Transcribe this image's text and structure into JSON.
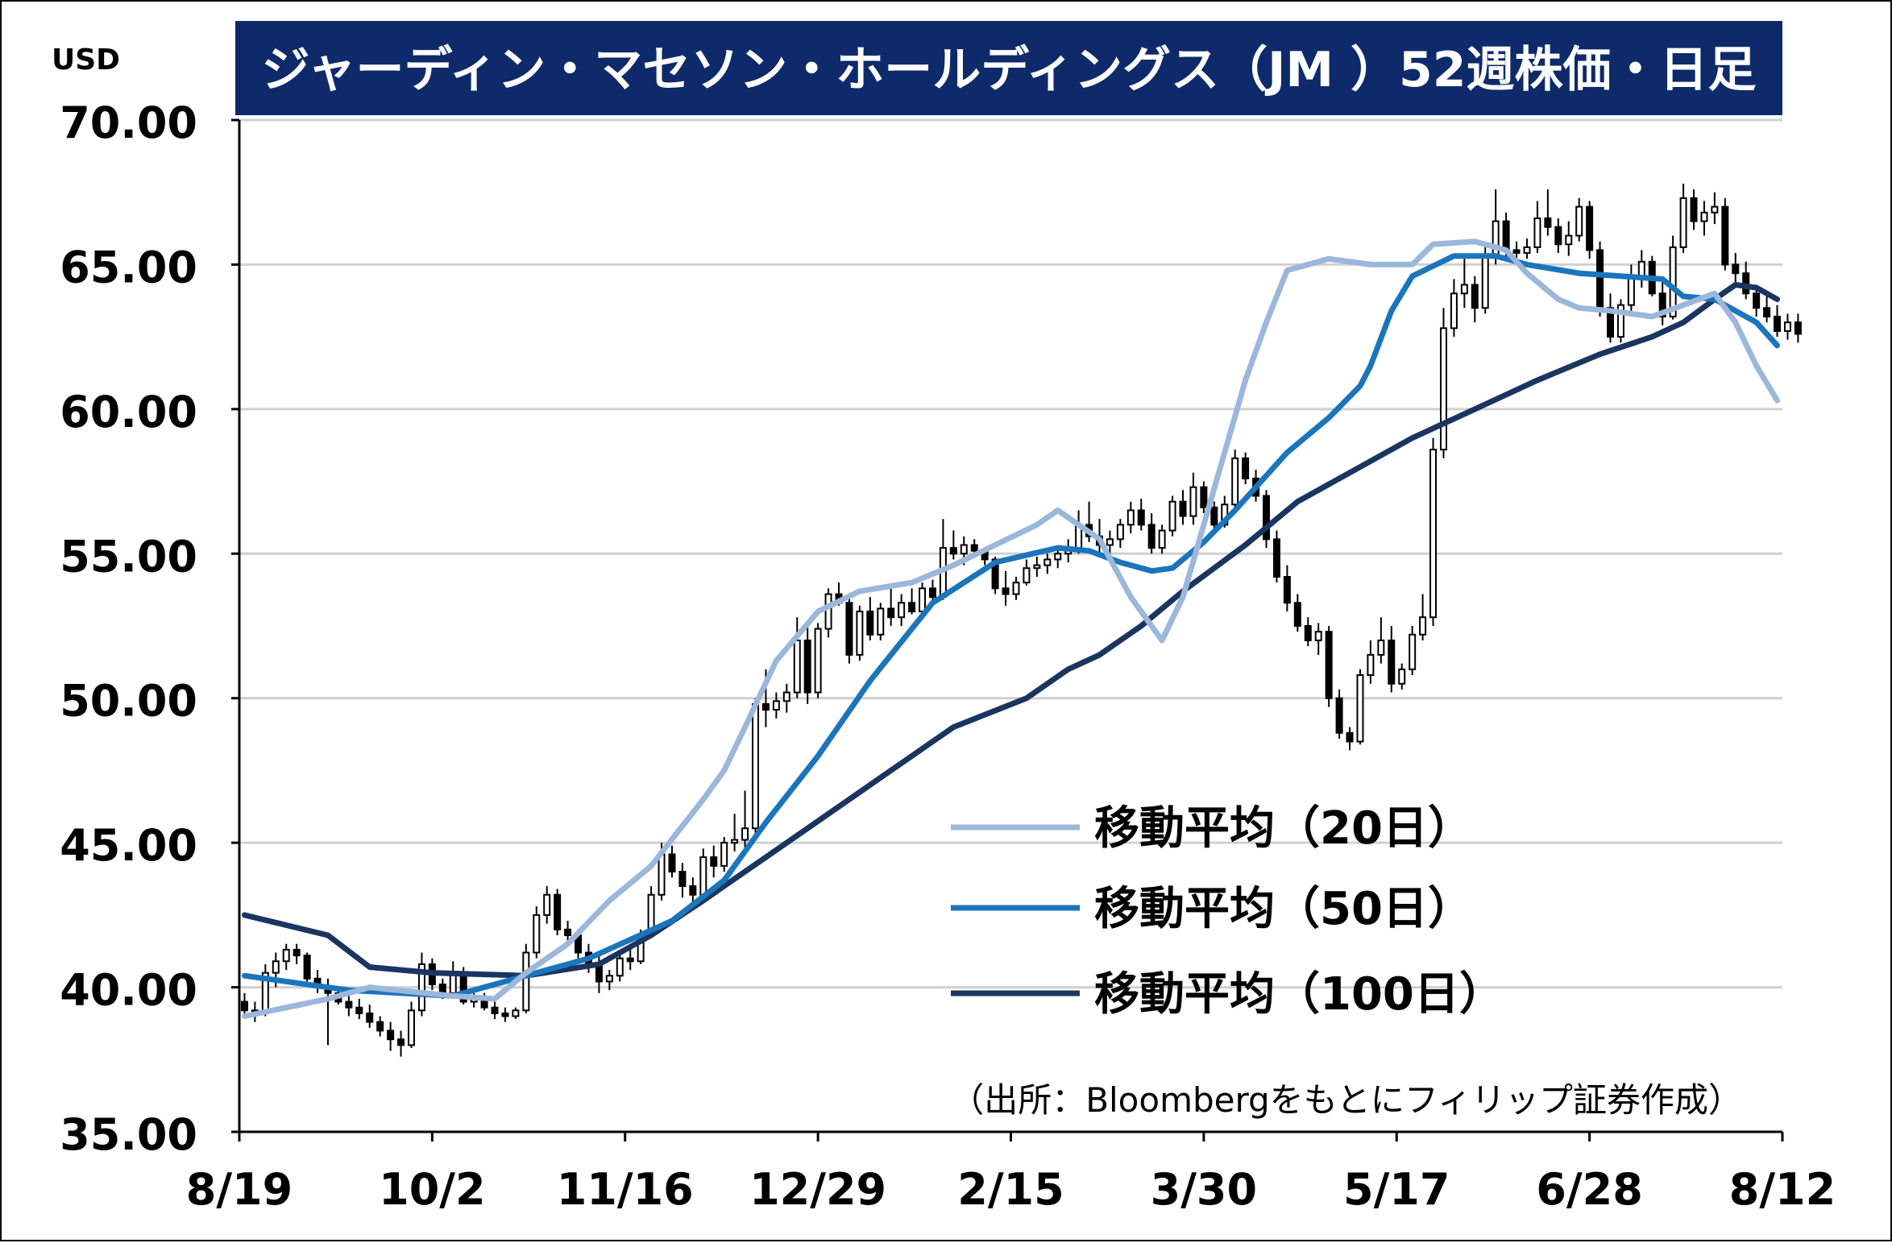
{
  "chart_data": {
    "type": "candlestick",
    "title": "ジャーディン・マセソン・ホールディングス（JM ）52週株価・日足",
    "y_unit": "USD",
    "source": "（出所：Bloombergをもとにフィリップ証券作成）",
    "ylim": [
      35,
      70
    ],
    "y_ticks": [
      "70.00",
      "65.00",
      "60.00",
      "55.00",
      "50.00",
      "45.00",
      "40.00",
      "35.00"
    ],
    "x_ticks": [
      "8/19",
      "10/2",
      "11/16",
      "12/29",
      "2/15",
      "3/30",
      "5/17",
      "6/28",
      "8/12"
    ],
    "grid": true,
    "legend_position": "right-center",
    "colors": {
      "title_bg": "#0f2a6a",
      "title_fg": "#ffffff",
      "ma20": "#9bb7db",
      "ma50": "#1b75bc",
      "ma100": "#1a3560",
      "candle": "#000000",
      "grid": "#d0d0d0"
    },
    "series": [
      {
        "name": "移動平均（20日）",
        "key": "ma20",
        "points": [
          [
            0,
            39.0
          ],
          [
            8,
            39.6
          ],
          [
            12,
            40.0
          ],
          [
            20,
            39.7
          ],
          [
            24,
            39.6
          ],
          [
            27,
            40.5
          ],
          [
            31,
            41.5
          ],
          [
            35,
            43.0
          ],
          [
            39,
            44.2
          ],
          [
            44,
            46.5
          ],
          [
            46,
            47.5
          ],
          [
            48,
            49.0
          ],
          [
            51,
            51.3
          ],
          [
            55,
            53.0
          ],
          [
            59,
            53.7
          ],
          [
            64,
            54.0
          ],
          [
            68,
            54.6
          ],
          [
            72,
            55.3
          ],
          [
            76,
            56.0
          ],
          [
            78,
            56.5
          ],
          [
            82,
            55.5
          ],
          [
            85,
            53.5
          ],
          [
            88,
            52.0
          ],
          [
            90,
            53.5
          ],
          [
            92,
            56.0
          ],
          [
            94,
            58.5
          ],
          [
            96,
            61.0
          ],
          [
            98,
            63.0
          ],
          [
            100,
            64.8
          ],
          [
            104,
            65.2
          ],
          [
            108,
            65.0
          ],
          [
            112,
            65.0
          ],
          [
            114,
            65.7
          ],
          [
            118,
            65.8
          ],
          [
            121,
            65.5
          ],
          [
            123,
            64.7
          ],
          [
            126,
            63.8
          ],
          [
            128,
            63.5
          ],
          [
            131,
            63.4
          ],
          [
            135,
            63.2
          ],
          [
            138,
            63.6
          ],
          [
            141,
            64.0
          ],
          [
            143,
            63.0
          ],
          [
            145,
            61.5
          ],
          [
            147,
            60.3
          ]
        ]
      },
      {
        "name": "移動平均（50日）",
        "key": "ma50",
        "points": [
          [
            0,
            40.4
          ],
          [
            10,
            39.9
          ],
          [
            20,
            39.7
          ],
          [
            25,
            40.2
          ],
          [
            33,
            41.0
          ],
          [
            41,
            42.3
          ],
          [
            46,
            43.7
          ],
          [
            50,
            45.7
          ],
          [
            55,
            48.0
          ],
          [
            60,
            50.6
          ],
          [
            66,
            53.3
          ],
          [
            72,
            54.7
          ],
          [
            78,
            55.2
          ],
          [
            81,
            55.1
          ],
          [
            84,
            54.7
          ],
          [
            87,
            54.4
          ],
          [
            89,
            54.5
          ],
          [
            92,
            55.4
          ],
          [
            95,
            56.5
          ],
          [
            100,
            58.5
          ],
          [
            104,
            59.7
          ],
          [
            107,
            60.8
          ],
          [
            108,
            61.5
          ],
          [
            110,
            63.4
          ],
          [
            112,
            64.6
          ],
          [
            116,
            65.3
          ],
          [
            120,
            65.3
          ],
          [
            123,
            65.0
          ],
          [
            128,
            64.7
          ],
          [
            132,
            64.6
          ],
          [
            136,
            64.5
          ],
          [
            138,
            63.9
          ],
          [
            141,
            63.8
          ],
          [
            145,
            63.0
          ],
          [
            147,
            62.2
          ]
        ]
      },
      {
        "name": "移動平均（100日）",
        "key": "ma100",
        "points": [
          [
            0,
            42.5
          ],
          [
            8,
            41.8
          ],
          [
            12,
            40.7
          ],
          [
            18,
            40.5
          ],
          [
            27,
            40.4
          ],
          [
            34,
            40.8
          ],
          [
            39,
            41.8
          ],
          [
            44,
            43.0
          ],
          [
            50,
            44.5
          ],
          [
            56,
            46.0
          ],
          [
            62,
            47.5
          ],
          [
            68,
            49.0
          ],
          [
            75,
            50.0
          ],
          [
            79,
            51.0
          ],
          [
            82,
            51.5
          ],
          [
            86,
            52.5
          ],
          [
            90,
            53.7
          ],
          [
            96,
            55.3
          ],
          [
            101,
            56.8
          ],
          [
            106,
            57.8
          ],
          [
            112,
            59.0
          ],
          [
            118,
            60.0
          ],
          [
            124,
            61.0
          ],
          [
            130,
            61.9
          ],
          [
            135,
            62.5
          ],
          [
            138,
            63.0
          ],
          [
            141,
            63.8
          ],
          [
            143,
            64.3
          ],
          [
            145,
            64.2
          ],
          [
            147,
            63.8
          ]
        ]
      }
    ],
    "candles_ohlc": [
      [
        39.5,
        39.8,
        39.0,
        39.2
      ],
      [
        39.2,
        39.5,
        38.8,
        39.1
      ],
      [
        39.1,
        40.8,
        39.0,
        40.5
      ],
      [
        40.5,
        41.2,
        40.0,
        40.9
      ],
      [
        40.9,
        41.5,
        40.6,
        41.3
      ],
      [
        41.3,
        41.5,
        40.8,
        41.1
      ],
      [
        41.1,
        41.2,
        40.2,
        40.3
      ],
      [
        40.3,
        40.6,
        39.8,
        40.0
      ],
      [
        40.0,
        40.3,
        38.0,
        39.8
      ],
      [
        39.8,
        40.0,
        39.4,
        39.5
      ],
      [
        39.5,
        39.7,
        39.0,
        39.3
      ],
      [
        39.3,
        39.6,
        38.9,
        39.1
      ],
      [
        39.1,
        39.4,
        38.6,
        38.8
      ],
      [
        38.8,
        39.0,
        38.3,
        38.5
      ],
      [
        38.5,
        38.8,
        37.8,
        38.2
      ],
      [
        38.2,
        38.5,
        37.6,
        38.0
      ],
      [
        38.0,
        39.5,
        37.9,
        39.2
      ],
      [
        39.2,
        41.2,
        39.0,
        40.8
      ],
      [
        40.8,
        41.0,
        39.9,
        40.1
      ],
      [
        40.1,
        40.3,
        39.6,
        39.8
      ],
      [
        39.8,
        40.9,
        39.7,
        40.5
      ],
      [
        40.5,
        40.7,
        39.4,
        39.5
      ],
      [
        39.5,
        39.8,
        39.3,
        39.6
      ],
      [
        39.6,
        39.8,
        39.2,
        39.3
      ],
      [
        39.3,
        39.5,
        38.9,
        39.1
      ],
      [
        39.1,
        39.3,
        38.8,
        39.0
      ],
      [
        39.0,
        39.3,
        38.9,
        39.2
      ],
      [
        39.2,
        41.5,
        39.1,
        41.2
      ],
      [
        41.2,
        42.8,
        41.0,
        42.5
      ],
      [
        42.5,
        43.5,
        42.2,
        43.2
      ],
      [
        43.2,
        43.4,
        41.8,
        42.0
      ],
      [
        42.0,
        42.3,
        41.5,
        41.8
      ],
      [
        41.8,
        42.0,
        41.0,
        41.2
      ],
      [
        41.2,
        41.5,
        40.5,
        40.8
      ],
      [
        40.8,
        41.2,
        39.8,
        40.2
      ],
      [
        40.2,
        40.6,
        39.9,
        40.4
      ],
      [
        40.4,
        41.2,
        40.2,
        41.0
      ],
      [
        41.0,
        41.5,
        40.6,
        40.9
      ],
      [
        40.9,
        42.0,
        40.8,
        41.8
      ],
      [
        41.8,
        43.5,
        41.7,
        43.2
      ],
      [
        43.2,
        45.0,
        43.0,
        44.6
      ],
      [
        44.6,
        44.9,
        43.8,
        44.0
      ],
      [
        44.0,
        44.3,
        43.1,
        43.5
      ],
      [
        43.5,
        43.8,
        42.9,
        43.2
      ],
      [
        43.2,
        44.8,
        43.0,
        44.5
      ],
      [
        44.5,
        44.9,
        43.8,
        44.2
      ],
      [
        44.2,
        45.2,
        44.0,
        45.0
      ],
      [
        45.0,
        46.0,
        44.7,
        45.1
      ],
      [
        45.1,
        46.8,
        44.8,
        45.5
      ],
      [
        45.5,
        50.0,
        45.3,
        49.8
      ],
      [
        49.8,
        51.0,
        49.0,
        49.6
      ],
      [
        49.6,
        50.2,
        49.3,
        49.9
      ],
      [
        49.9,
        50.5,
        49.5,
        50.2
      ],
      [
        50.2,
        52.8,
        50.0,
        52.0
      ],
      [
        52.0,
        52.5,
        49.8,
        50.2
      ],
      [
        50.2,
        52.6,
        50.0,
        52.4
      ],
      [
        52.4,
        53.8,
        52.1,
        53.6
      ],
      [
        53.6,
        54.0,
        53.2,
        53.3
      ],
      [
        53.3,
        53.5,
        51.2,
        51.5
      ],
      [
        51.5,
        53.2,
        51.3,
        53.0
      ],
      [
        53.0,
        53.5,
        52.0,
        52.2
      ],
      [
        52.2,
        53.3,
        52.0,
        53.1
      ],
      [
        53.1,
        53.8,
        52.5,
        52.8
      ],
      [
        52.8,
        53.6,
        52.5,
        53.3
      ],
      [
        53.3,
        53.8,
        52.9,
        53.0
      ],
      [
        53.0,
        54.0,
        52.8,
        53.8
      ],
      [
        53.8,
        54.1,
        53.2,
        53.5
      ],
      [
        53.5,
        56.2,
        53.4,
        55.2
      ],
      [
        55.2,
        55.8,
        54.8,
        55.0
      ],
      [
        55.0,
        55.6,
        54.6,
        55.3
      ],
      [
        55.3,
        55.5,
        54.9,
        55.1
      ],
      [
        55.1,
        55.2,
        54.6,
        54.8
      ],
      [
        54.8,
        54.9,
        53.6,
        53.8
      ],
      [
        53.8,
        54.4,
        53.2,
        53.6
      ],
      [
        53.6,
        54.2,
        53.4,
        54.0
      ],
      [
        54.0,
        54.8,
        53.9,
        54.5
      ],
      [
        54.5,
        54.9,
        54.2,
        54.6
      ],
      [
        54.6,
        55.0,
        54.3,
        54.8
      ],
      [
        54.8,
        55.2,
        54.5,
        55.0
      ],
      [
        55.0,
        55.5,
        54.7,
        55.2
      ],
      [
        55.2,
        56.5,
        55.0,
        56.0
      ],
      [
        56.0,
        56.8,
        55.4,
        55.6
      ],
      [
        55.6,
        56.2,
        55.0,
        55.3
      ],
      [
        55.3,
        55.8,
        54.9,
        55.5
      ],
      [
        55.5,
        56.2,
        55.2,
        56.0
      ],
      [
        56.0,
        56.8,
        55.7,
        56.5
      ],
      [
        56.5,
        56.9,
        55.8,
        56.0
      ],
      [
        56.0,
        56.4,
        55.0,
        55.2
      ],
      [
        55.2,
        56.0,
        55.0,
        55.8
      ],
      [
        55.8,
        57.0,
        55.6,
        56.8
      ],
      [
        56.8,
        57.2,
        56.0,
        56.3
      ],
      [
        56.3,
        57.8,
        56.0,
        57.3
      ],
      [
        57.3,
        57.5,
        56.4,
        56.6
      ],
      [
        56.6,
        56.8,
        55.8,
        56.0
      ],
      [
        56.0,
        57.0,
        55.9,
        56.7
      ],
      [
        56.7,
        58.6,
        56.5,
        58.3
      ],
      [
        58.3,
        58.5,
        57.4,
        57.6
      ],
      [
        57.6,
        57.9,
        56.8,
        57.0
      ],
      [
        57.0,
        57.2,
        55.2,
        55.5
      ],
      [
        55.5,
        55.8,
        54.0,
        54.2
      ],
      [
        54.2,
        54.6,
        53.0,
        53.3
      ],
      [
        53.3,
        53.6,
        52.3,
        52.5
      ],
      [
        52.5,
        52.8,
        51.8,
        52.0
      ],
      [
        52.0,
        52.6,
        51.5,
        52.3
      ],
      [
        52.3,
        52.5,
        49.7,
        50.0
      ],
      [
        50.0,
        50.3,
        48.6,
        48.8
      ],
      [
        48.8,
        49.0,
        48.2,
        48.5
      ],
      [
        48.5,
        51.0,
        48.4,
        50.8
      ],
      [
        50.8,
        52.0,
        50.5,
        51.5
      ],
      [
        51.5,
        52.8,
        51.2,
        52.0
      ],
      [
        52.0,
        52.5,
        50.2,
        50.5
      ],
      [
        50.5,
        51.2,
        50.3,
        51.0
      ],
      [
        51.0,
        52.5,
        50.8,
        52.2
      ],
      [
        52.2,
        53.6,
        52.0,
        52.8
      ],
      [
        52.8,
        59.0,
        52.5,
        58.6
      ],
      [
        58.6,
        63.5,
        58.3,
        62.8
      ],
      [
        62.8,
        64.5,
        62.5,
        64.0
      ],
      [
        64.0,
        65.2,
        63.5,
        64.3
      ],
      [
        64.3,
        64.6,
        63.0,
        63.5
      ],
      [
        63.5,
        65.8,
        63.3,
        65.3
      ],
      [
        65.3,
        67.6,
        65.0,
        66.5
      ],
      [
        66.5,
        66.8,
        65.2,
        65.5
      ],
      [
        65.5,
        65.8,
        65.1,
        65.4
      ],
      [
        65.4,
        65.9,
        65.2,
        65.6
      ],
      [
        65.6,
        67.2,
        65.4,
        66.6
      ],
      [
        66.6,
        67.6,
        66.0,
        66.3
      ],
      [
        66.3,
        66.6,
        65.4,
        65.7
      ],
      [
        65.7,
        66.5,
        65.3,
        66.0
      ],
      [
        66.0,
        67.3,
        65.8,
        67.0
      ],
      [
        67.0,
        67.2,
        65.2,
        65.5
      ],
      [
        65.5,
        65.8,
        63.2,
        63.5
      ],
      [
        63.5,
        64.0,
        62.3,
        62.5
      ],
      [
        62.5,
        63.8,
        62.3,
        63.6
      ],
      [
        63.6,
        65.0,
        63.4,
        64.6
      ],
      [
        64.6,
        65.5,
        64.2,
        65.1
      ],
      [
        65.1,
        65.3,
        63.9,
        64.0
      ],
      [
        64.0,
        64.5,
        62.9,
        63.2
      ],
      [
        63.2,
        66.0,
        63.1,
        65.6
      ],
      [
        65.6,
        67.8,
        65.4,
        67.3
      ],
      [
        67.3,
        67.6,
        66.2,
        66.5
      ],
      [
        66.5,
        67.2,
        66.0,
        66.8
      ],
      [
        66.8,
        67.5,
        66.4,
        67.0
      ],
      [
        67.0,
        67.3,
        64.8,
        65.0
      ],
      [
        65.0,
        65.4,
        64.4,
        64.7
      ],
      [
        64.7,
        65.1,
        63.8,
        64.0
      ],
      [
        64.0,
        64.3,
        63.2,
        63.5
      ],
      [
        63.5,
        63.9,
        63.0,
        63.2
      ],
      [
        63.2,
        63.6,
        62.5,
        62.7
      ],
      [
        62.7,
        63.3,
        62.4,
        63.0
      ],
      [
        63.0,
        63.3,
        62.3,
        62.6
      ]
    ]
  },
  "legend": {
    "items": [
      "移動平均（20日）",
      "移動平均（50日）",
      "移動平均（100日）"
    ]
  }
}
